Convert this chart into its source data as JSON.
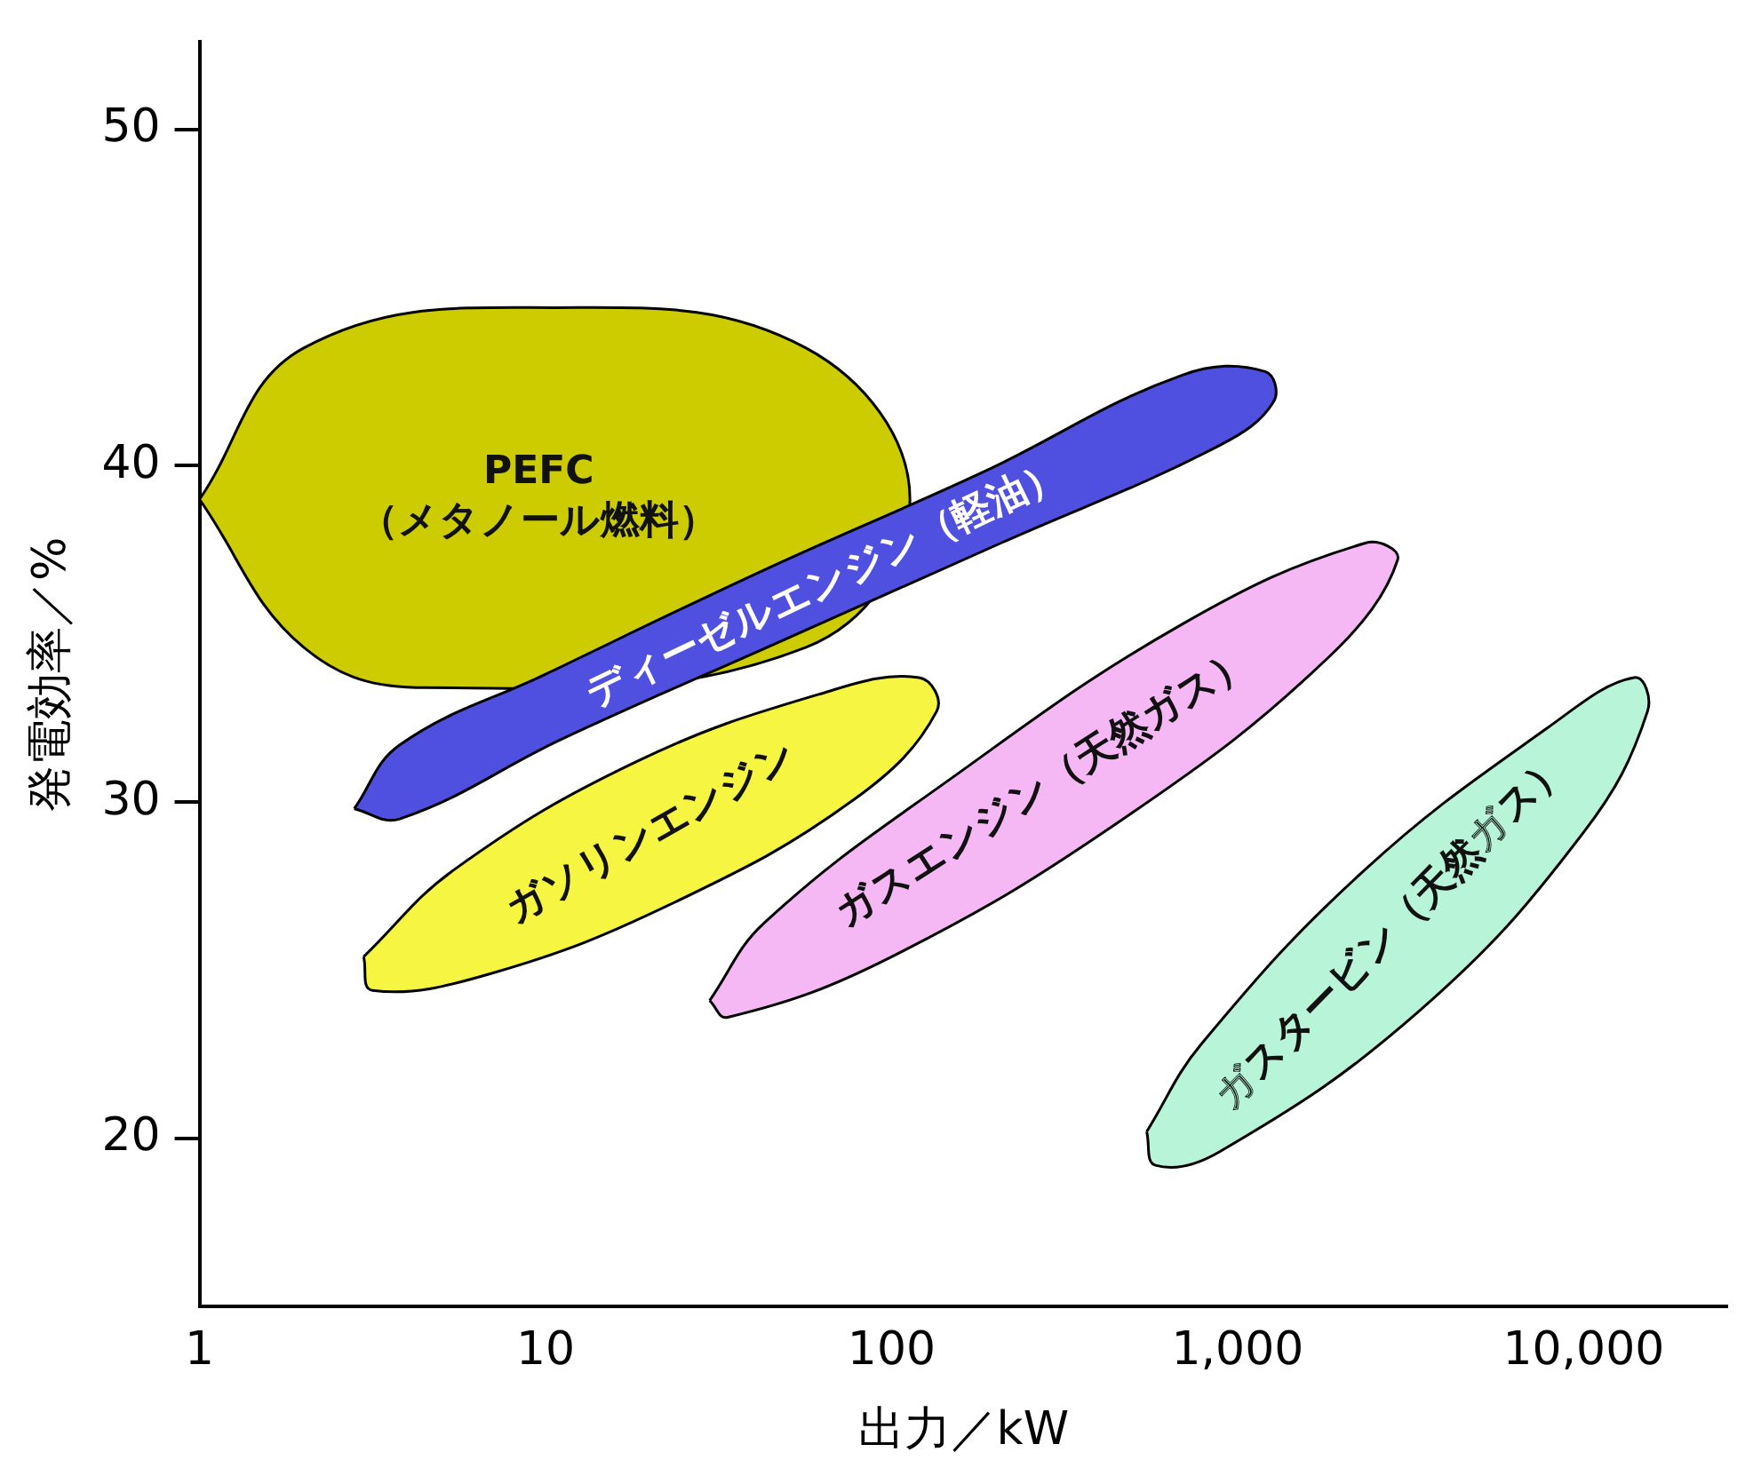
{
  "chart_data": {
    "type": "area",
    "xlabel": "出力／kW",
    "ylabel": "発電効率／%",
    "log": "x",
    "xlim": [
      1,
      26000
    ],
    "ylim": [
      15,
      52.6
    ],
    "xticks": [
      1,
      10,
      100,
      {
        "value": 1000,
        "label": "1,000"
      },
      {
        "value": 10000,
        "label": "10,000"
      }
    ],
    "yticks": [
      20,
      30,
      40,
      50
    ],
    "grid": false,
    "series": [
      {
        "name": "PEFC\n（メタノール燃料）",
        "color": "#cccc00",
        "x": [
          1,
          2,
          10.6,
          56.6,
          113,
          56.6,
          4.5,
          2
        ],
        "values": [
          39,
          43.5,
          44.7,
          43.5,
          39,
          34.6,
          33.4,
          34.6
        ]
      },
      {
        "name": "ディーゼルエンジン（軽油）",
        "color": "#5050e0",
        "x": [
          2.8,
          3.79,
          10,
          42.8,
          183,
          695,
          1200,
          1270,
          886,
          207,
          48.3,
          11.3,
          3.79
        ],
        "values": [
          29.8,
          31.7,
          33.8,
          36.9,
          39.8,
          42.7,
          42.8,
          41.9,
          40.6,
          37.7,
          34.8,
          31.9,
          29.5
        ]
      },
      {
        "name": "ガソリンエンジン",
        "color": "#f5f542",
        "x": [
          2.98,
          5.46,
          18.3,
          61.5,
          120,
          135,
          78.5,
          23.4,
          6.95,
          3.16
        ],
        "values": [
          25.4,
          28,
          31.2,
          33.2,
          33.7,
          32.7,
          30.1,
          27,
          24.9,
          24.4
        ]
      },
      {
        "name": "ガスエンジン（天然ガス）",
        "color": "#f5b8f5",
        "x": [
          29.8,
          42.8,
          144,
          695,
          2340,
          2900,
          1830,
          483,
          100,
          33.6
        ],
        "values": [
          24.1,
          26.4,
          30.6,
          35.3,
          37.7,
          37.2,
          34.3,
          29.6,
          25.4,
          23.6
        ]
      },
      {
        "name": "ガスタービン（天然ガス）",
        "color": "#b8f5d8",
        "x": [
          546,
          785,
          2340,
          7850,
          14000,
          15300,
          10000,
          3360,
          886,
          579
        ],
        "values": [
          20.2,
          22.8,
          28,
          32.2,
          33.7,
          32.7,
          29.1,
          23.8,
          19.6,
          19.2
        ]
      }
    ]
  }
}
